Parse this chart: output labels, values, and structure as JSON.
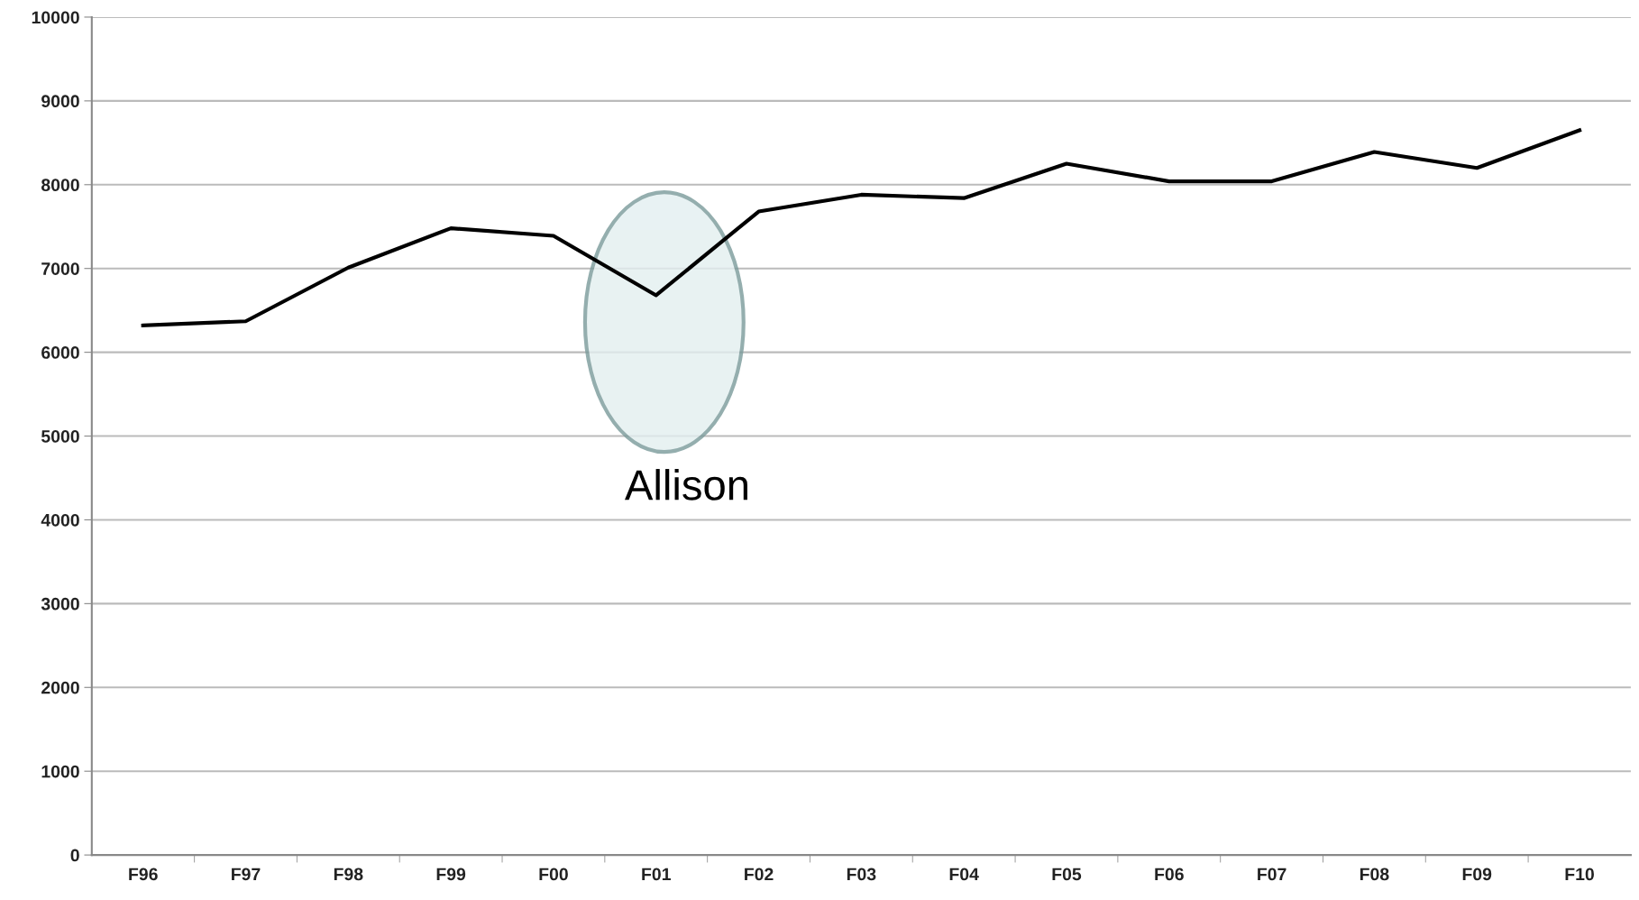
{
  "chart_data": {
    "type": "line",
    "categories": [
      "F96",
      "F97",
      "F98",
      "F99",
      "F00",
      "F01",
      "F02",
      "F03",
      "F04",
      "F05",
      "F06",
      "F07",
      "F08",
      "F09",
      "F10"
    ],
    "series": [
      {
        "color": "#000000",
        "values": [
          6320,
          6370,
          7010,
          7480,
          7390,
          6680,
          7680,
          7880,
          7840,
          8250,
          8040,
          8040,
          8390,
          8200,
          8650
        ]
      }
    ],
    "ylim": [
      0,
      10000
    ],
    "yticks": [
      0,
      1000,
      2000,
      3000,
      4000,
      5000,
      6000,
      7000,
      8000,
      9000,
      10000
    ],
    "grid": "y",
    "legend": false,
    "marker": "none",
    "line_style": "solid",
    "annotations": [
      "Allison"
    ]
  }
}
